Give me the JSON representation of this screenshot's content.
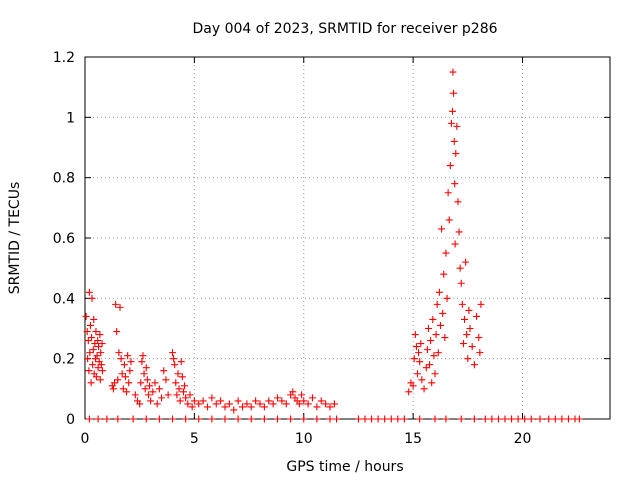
{
  "chart_data": {
    "type": "scatter",
    "title": "Day 004 of 2023, SRMTID for receiver p286",
    "xlabel": "GPS time / hours",
    "ylabel": "SRMTID / TECUs",
    "xlim": [
      0,
      24
    ],
    "ylim": [
      0,
      1.2
    ],
    "grid": true,
    "marker": "+",
    "marker_color": "#ff0000",
    "x_ticks": [
      0,
      5,
      10,
      15,
      20
    ],
    "x_tick_labels": [
      "0",
      "5",
      "10",
      "15",
      "20"
    ],
    "y_ticks": [
      0,
      0.2,
      0.4,
      0.6,
      0.8,
      1.0,
      1.2
    ],
    "y_tick_labels": [
      "0",
      "0.2",
      "0.4",
      "0.6",
      "0.8",
      "1",
      "1.2"
    ],
    "series": [
      {
        "name": "SRMTID",
        "x": [
          0.05,
          0.1,
          0.12,
          0.15,
          0.18,
          0.2,
          0.22,
          0.25,
          0.28,
          0.3,
          0.32,
          0.35,
          0.38,
          0.4,
          0.42,
          0.45,
          0.48,
          0.5,
          0.52,
          0.55,
          0.58,
          0.6,
          0.62,
          0.65,
          0.68,
          0.7,
          0.72,
          0.75,
          0.78,
          0.8,
          1.25,
          1.3,
          1.35,
          1.4,
          1.45,
          1.5,
          1.55,
          1.6,
          1.65,
          1.7,
          1.75,
          1.8,
          1.85,
          1.9,
          1.95,
          2.0,
          2.05,
          2.1,
          2.3,
          2.4,
          2.5,
          2.55,
          2.6,
          2.65,
          2.7,
          2.75,
          2.8,
          2.85,
          2.9,
          2.95,
          3.0,
          3.1,
          3.2,
          3.3,
          3.4,
          3.5,
          3.6,
          3.7,
          3.8,
          4.0,
          4.05,
          4.1,
          4.15,
          4.2,
          4.25,
          4.3,
          4.35,
          4.4,
          4.45,
          4.5,
          4.55,
          4.6,
          4.7,
          4.8,
          4.9,
          5.0,
          5.2,
          5.4,
          5.6,
          5.8,
          6.0,
          6.2,
          6.4,
          6.6,
          6.8,
          7.0,
          7.2,
          7.4,
          7.6,
          7.8,
          8.0,
          8.2,
          8.4,
          8.6,
          8.8,
          9.0,
          9.2,
          9.4,
          9.5,
          9.6,
          9.7,
          9.8,
          9.9,
          10.0,
          10.2,
          10.4,
          10.6,
          10.8,
          11.0,
          11.2,
          11.4,
          14.8,
          14.9,
          15.0,
          15.05,
          15.1,
          15.15,
          15.2,
          15.25,
          15.3,
          15.35,
          15.4,
          15.5,
          15.6,
          15.65,
          15.7,
          15.75,
          15.8,
          15.85,
          15.9,
          15.95,
          16.0,
          16.05,
          16.1,
          16.15,
          16.2,
          16.25,
          16.3,
          16.35,
          16.4,
          16.45,
          16.5,
          16.55,
          16.6,
          16.65,
          16.7,
          16.75,
          16.8,
          16.82,
          16.85,
          16.88,
          16.9,
          16.92,
          16.95,
          17.0,
          17.05,
          17.1,
          17.15,
          17.2,
          17.25,
          17.3,
          17.35,
          17.4,
          17.45,
          17.5,
          17.55,
          17.6,
          17.7,
          17.8,
          17.9,
          18.0,
          18.05,
          18.1,
          0.2,
          0.6,
          1.0,
          1.5,
          2.2,
          2.8,
          3.4,
          4.0,
          4.6,
          5.2,
          5.8,
          6.4,
          7.0,
          7.6,
          8.2,
          8.8,
          9.4,
          10.0,
          10.6,
          11.2,
          11.5,
          12.5,
          12.8,
          13.1,
          13.4,
          13.7,
          14.0,
          14.3,
          14.6,
          15.3,
          16.0,
          16.5,
          17.2,
          17.8,
          18.3,
          18.6,
          18.9,
          19.2,
          19.5,
          19.8,
          20.1,
          20.4,
          20.8,
          21.2,
          21.5,
          21.8,
          22.1,
          22.4,
          22.6
        ],
        "y": [
          0.34,
          0.29,
          0.2,
          0.26,
          0.16,
          0.42,
          0.22,
          0.31,
          0.12,
          0.27,
          0.4,
          0.18,
          0.23,
          0.33,
          0.15,
          0.25,
          0.2,
          0.29,
          0.14,
          0.21,
          0.26,
          0.17,
          0.24,
          0.19,
          0.28,
          0.13,
          0.22,
          0.18,
          0.25,
          0.16,
          0.11,
          0.1,
          0.12,
          0.38,
          0.29,
          0.13,
          0.22,
          0.37,
          0.2,
          0.15,
          0.1,
          0.18,
          0.14,
          0.09,
          0.21,
          0.12,
          0.16,
          0.19,
          0.08,
          0.06,
          0.05,
          0.12,
          0.19,
          0.21,
          0.15,
          0.1,
          0.17,
          0.13,
          0.08,
          0.11,
          0.06,
          0.09,
          0.12,
          0.05,
          0.1,
          0.07,
          0.16,
          0.13,
          0.08,
          0.22,
          0.2,
          0.18,
          0.12,
          0.08,
          0.15,
          0.1,
          0.06,
          0.19,
          0.14,
          0.09,
          0.11,
          0.07,
          0.05,
          0.08,
          0.04,
          0.06,
          0.05,
          0.06,
          0.04,
          0.07,
          0.05,
          0.06,
          0.04,
          0.05,
          0.03,
          0.06,
          0.04,
          0.05,
          0.04,
          0.06,
          0.05,
          0.04,
          0.06,
          0.05,
          0.07,
          0.06,
          0.05,
          0.08,
          0.09,
          0.07,
          0.06,
          0.05,
          0.08,
          0.06,
          0.05,
          0.07,
          0.04,
          0.06,
          0.05,
          0.04,
          0.05,
          0.09,
          0.12,
          0.11,
          0.2,
          0.28,
          0.24,
          0.15,
          0.22,
          0.19,
          0.25,
          0.13,
          0.1,
          0.17,
          0.23,
          0.3,
          0.18,
          0.26,
          0.12,
          0.33,
          0.21,
          0.15,
          0.28,
          0.38,
          0.22,
          0.42,
          0.31,
          0.63,
          0.35,
          0.48,
          0.27,
          0.55,
          0.4,
          0.75,
          0.66,
          0.84,
          0.98,
          1.02,
          1.15,
          1.08,
          0.92,
          0.78,
          0.58,
          0.88,
          0.97,
          0.72,
          0.62,
          0.5,
          0.45,
          0.38,
          0.25,
          0.33,
          0.52,
          0.28,
          0.2,
          0.36,
          0.3,
          0.24,
          0.18,
          0.34,
          0.27,
          0.22,
          0.38,
          0,
          0,
          0,
          0,
          0,
          0,
          0,
          0,
          0,
          0,
          0,
          0,
          0,
          0,
          0,
          0,
          0,
          0,
          0,
          0,
          0,
          0,
          0,
          0,
          0,
          0,
          0,
          0,
          0,
          0,
          0,
          0,
          0,
          0,
          0,
          0,
          0,
          0,
          0,
          0,
          0,
          0,
          0,
          0,
          0,
          0,
          0,
          0,
          0
        ]
      }
    ]
  }
}
